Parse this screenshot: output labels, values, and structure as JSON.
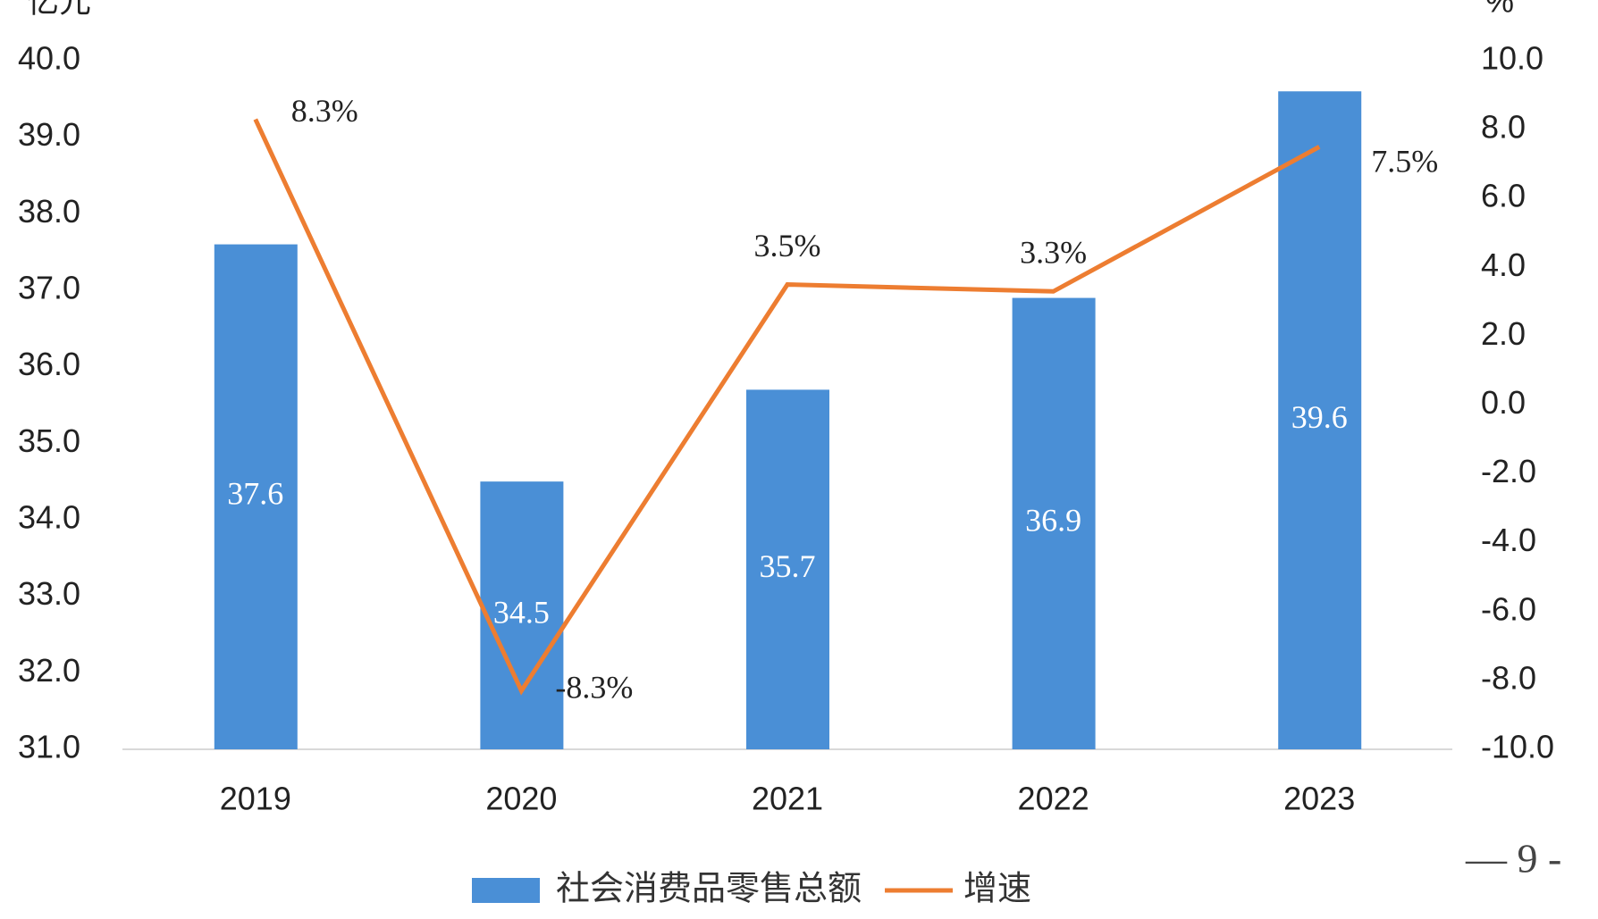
{
  "chart_data": {
    "type": "bar_line",
    "y_label": "亿元",
    "y2_label": "%",
    "categories": [
      "2019",
      "2020",
      "2021",
      "2022",
      "2023"
    ],
    "series": [
      {
        "name": "社会消费品零售总额",
        "type": "bar",
        "color": "#4a8fd6",
        "values": [
          37.6,
          34.5,
          35.7,
          36.9,
          39.6
        ]
      },
      {
        "name": "增速",
        "type": "line",
        "axis": "y2",
        "color": "#ed7d31",
        "values": [
          8.3,
          -8.3,
          3.5,
          3.3,
          7.5
        ],
        "value_labels": [
          "8.3%",
          "-8.3%",
          "3.5%",
          "3.3%",
          "7.5%"
        ]
      }
    ],
    "ylim": [
      31,
      40
    ],
    "yticks": [
      {
        "value": 31,
        "label": "31.0"
      },
      {
        "value": 32,
        "label": "32.0"
      },
      {
        "value": 33,
        "label": "33.0"
      },
      {
        "value": 34,
        "label": "34.0"
      },
      {
        "value": 35,
        "label": "35.0"
      },
      {
        "value": 36,
        "label": "36.0"
      },
      {
        "value": 37,
        "label": "37.0"
      },
      {
        "value": 38,
        "label": "38.0"
      },
      {
        "value": 39,
        "label": "39.0"
      },
      {
        "value": 40,
        "label": "40.0"
      }
    ],
    "y2lim": [
      -10,
      10
    ],
    "y2ticks": [
      {
        "value": -10,
        "label": "-10.0"
      },
      {
        "value": -8,
        "label": "-8.0"
      },
      {
        "value": -6,
        "label": "-6.0"
      },
      {
        "value": -4,
        "label": "-4.0"
      },
      {
        "value": -2,
        "label": "-2.0"
      },
      {
        "value": 0,
        "label": "0.0"
      },
      {
        "value": 2,
        "label": "2.0"
      },
      {
        "value": 4,
        "label": "4.0"
      },
      {
        "value": 6,
        "label": "6.0"
      },
      {
        "value": 8,
        "label": "8.0"
      },
      {
        "value": 10,
        "label": "10.0"
      }
    ],
    "legend": "bottom",
    "page_number": "— 9 -"
  }
}
